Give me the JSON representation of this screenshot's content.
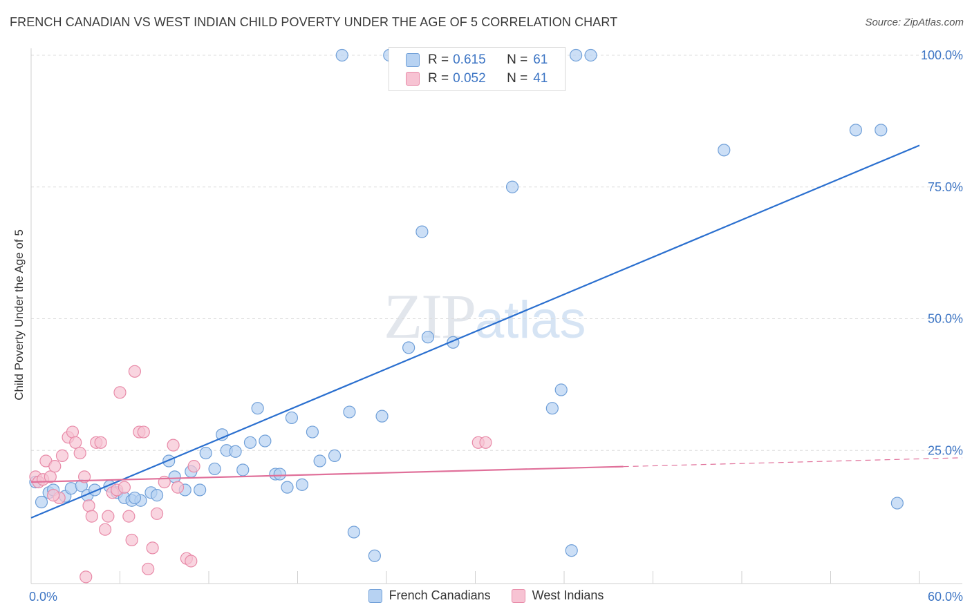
{
  "title": "FRENCH CANADIAN VS WEST INDIAN CHILD POVERTY UNDER THE AGE OF 5 CORRELATION CHART",
  "source": "Source: ZipAtlas.com",
  "watermark": {
    "part1": "ZIP",
    "part2": "atlas"
  },
  "colors": {
    "blue_fill": "#b7d2f2",
    "blue_stroke": "#6f9fd8",
    "blue_line": "#2a6fcf",
    "pink_fill": "#f7c3d3",
    "pink_stroke": "#e88aa8",
    "pink_line": "#e0709a",
    "axis_text": "#3d75c4",
    "grid": "#dcdcdc"
  },
  "legend": {
    "rows": [
      {
        "r_key": "R =",
        "r_val": "0.615",
        "n_key": "N =",
        "n_val": "61"
      },
      {
        "r_key": "R =",
        "r_val": "0.052",
        "n_key": "N =",
        "n_val": "41"
      }
    ]
  },
  "bottom_legend": [
    "French Canadians",
    "West Indians"
  ],
  "chart_data": {
    "type": "scatter",
    "title": "FRENCH CANADIAN VS WEST INDIAN CHILD POVERTY UNDER THE AGE OF 5 CORRELATION CHART",
    "xlabel": "",
    "ylabel": "Child Poverty Under the Age of 5",
    "xlim": [
      0,
      60
    ],
    "ylim": [
      0,
      102
    ],
    "x_tick_labels": [
      {
        "value": 0,
        "label": "0.0%"
      },
      {
        "value": 60,
        "label": "60.0%"
      }
    ],
    "y_tick_labels": [
      {
        "value": 25,
        "label": "25.0%"
      },
      {
        "value": 50,
        "label": "50.0%"
      },
      {
        "value": 75,
        "label": "75.0%"
      },
      {
        "value": 100,
        "label": "100.0%"
      }
    ],
    "grid": true,
    "legend_position": "top-center",
    "series": [
      {
        "name": "French Canadians",
        "R": 0.615,
        "N": 61,
        "trend": {
          "x": [
            0,
            60
          ],
          "y": [
            12.2,
            82.9
          ],
          "dashed_from": null
        },
        "points": [
          [
            0.3,
            19.0
          ],
          [
            0.7,
            15.2
          ],
          [
            1.2,
            17.0
          ],
          [
            1.5,
            17.5
          ],
          [
            2.3,
            16.3
          ],
          [
            2.7,
            17.8
          ],
          [
            3.4,
            18.3
          ],
          [
            3.8,
            16.5
          ],
          [
            4.3,
            17.5
          ],
          [
            5.3,
            18.2
          ],
          [
            5.8,
            17.0
          ],
          [
            6.3,
            16.0
          ],
          [
            6.8,
            15.5
          ],
          [
            7.4,
            15.5
          ],
          [
            8.1,
            17.0
          ],
          [
            8.5,
            16.5
          ],
          [
            9.3,
            23.0
          ],
          [
            9.7,
            20.0
          ],
          [
            10.4,
            17.5
          ],
          [
            10.8,
            21.0
          ],
          [
            11.4,
            17.5
          ],
          [
            11.8,
            24.5
          ],
          [
            12.4,
            21.5
          ],
          [
            12.9,
            28.0
          ],
          [
            13.2,
            25.0
          ],
          [
            13.8,
            24.8
          ],
          [
            14.3,
            21.3
          ],
          [
            14.8,
            26.5
          ],
          [
            15.3,
            33.0
          ],
          [
            15.8,
            26.8
          ],
          [
            16.5,
            20.5
          ],
          [
            16.8,
            20.5
          ],
          [
            17.3,
            18.0
          ],
          [
            17.6,
            31.2
          ],
          [
            18.3,
            18.5
          ],
          [
            19.0,
            28.5
          ],
          [
            19.5,
            23.0
          ],
          [
            20.5,
            24.0
          ],
          [
            21.0,
            100.0
          ],
          [
            21.5,
            32.3
          ],
          [
            21.8,
            9.5
          ],
          [
            23.2,
            5.0
          ],
          [
            23.7,
            31.5
          ],
          [
            24.2,
            100.0
          ],
          [
            25.5,
            44.5
          ],
          [
            26.4,
            66.5
          ],
          [
            26.8,
            46.5
          ],
          [
            27.5,
            100.0
          ],
          [
            28.5,
            45.5
          ],
          [
            32.5,
            75.0
          ],
          [
            35.2,
            33.0
          ],
          [
            35.8,
            36.5
          ],
          [
            36.5,
            6.0
          ],
          [
            36.8,
            100.0
          ],
          [
            37.8,
            100.0
          ],
          [
            46.8,
            82.0
          ],
          [
            55.7,
            85.8
          ],
          [
            57.4,
            85.8
          ],
          [
            58.5,
            15.0
          ],
          [
            31.0,
            100.0
          ],
          [
            7.0,
            16.0
          ]
        ]
      },
      {
        "name": "West Indians",
        "R": 0.052,
        "N": 41,
        "trend": {
          "x": [
            0,
            60
          ],
          "y": [
            19.0,
            23.4
          ],
          "dashed_from": 40
        },
        "points": [
          [
            0.3,
            20.0
          ],
          [
            0.5,
            19.0
          ],
          [
            0.8,
            19.5
          ],
          [
            1.0,
            23.0
          ],
          [
            1.3,
            20.0
          ],
          [
            1.6,
            22.0
          ],
          [
            1.9,
            16.0
          ],
          [
            2.1,
            24.0
          ],
          [
            2.5,
            27.5
          ],
          [
            2.8,
            28.5
          ],
          [
            3.0,
            26.5
          ],
          [
            3.3,
            24.5
          ],
          [
            3.6,
            20.0
          ],
          [
            3.9,
            14.5
          ],
          [
            4.1,
            12.5
          ],
          [
            4.4,
            26.5
          ],
          [
            4.7,
            26.5
          ],
          [
            5.0,
            10.0
          ],
          [
            5.2,
            12.5
          ],
          [
            5.5,
            17.0
          ],
          [
            5.8,
            17.5
          ],
          [
            6.0,
            36.0
          ],
          [
            6.3,
            18.0
          ],
          [
            6.6,
            12.5
          ],
          [
            6.8,
            8.0
          ],
          [
            7.0,
            40.0
          ],
          [
            7.3,
            28.5
          ],
          [
            7.6,
            28.5
          ],
          [
            7.9,
            2.5
          ],
          [
            8.2,
            6.5
          ],
          [
            8.5,
            13.0
          ],
          [
            9.6,
            26.0
          ],
          [
            9.9,
            18.0
          ],
          [
            10.5,
            4.5
          ],
          [
            10.8,
            4.0
          ],
          [
            11.0,
            22.0
          ],
          [
            30.2,
            26.5
          ],
          [
            30.7,
            26.5
          ],
          [
            1.5,
            16.5
          ],
          [
            3.7,
            1.0
          ],
          [
            9.0,
            19.0
          ]
        ]
      }
    ]
  }
}
